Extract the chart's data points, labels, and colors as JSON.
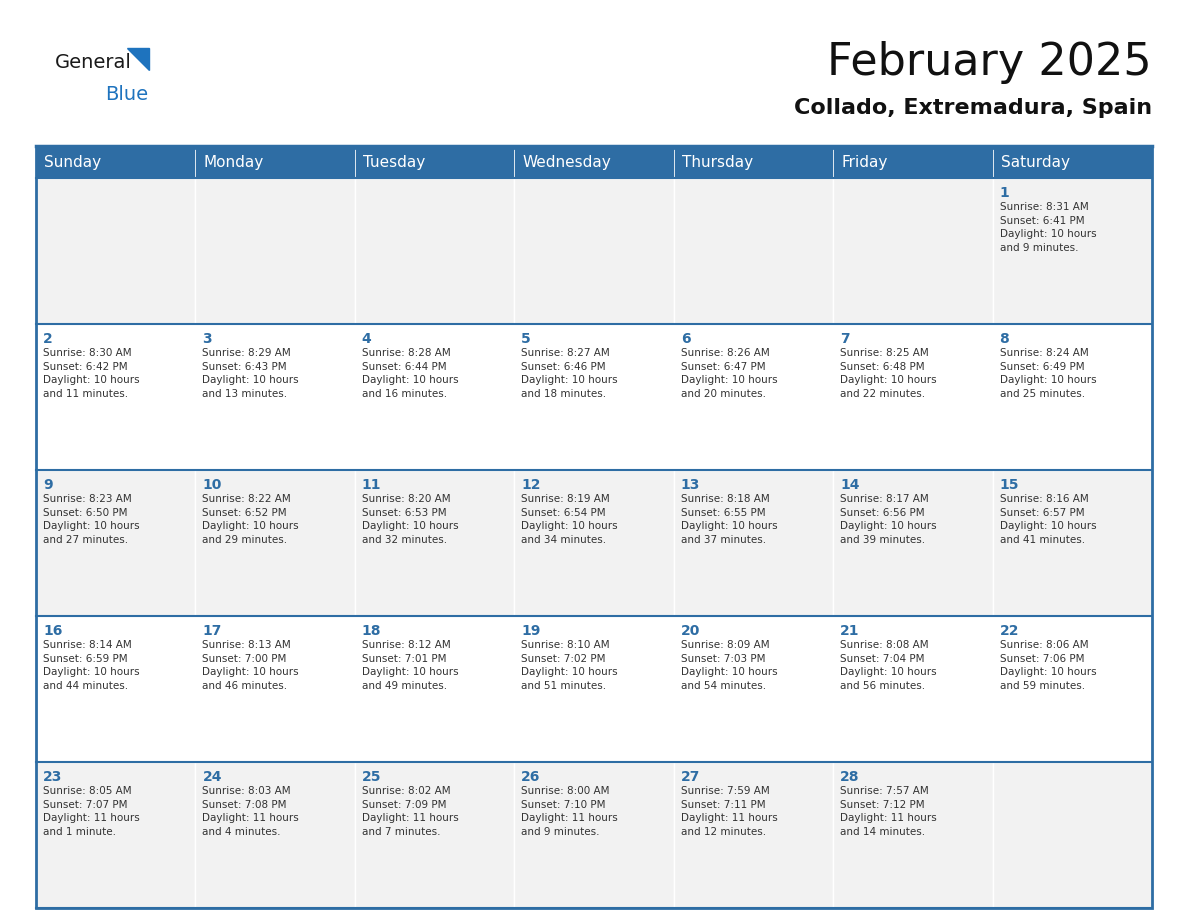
{
  "title": "February 2025",
  "subtitle": "Collado, Extremadura, Spain",
  "header_bg": "#2E6DA4",
  "header_text_color": "#FFFFFF",
  "cell_bg_even": "#F2F2F2",
  "cell_bg_odd": "#FFFFFF",
  "border_color": "#2E6DA4",
  "day_names": [
    "Sunday",
    "Monday",
    "Tuesday",
    "Wednesday",
    "Thursday",
    "Friday",
    "Saturday"
  ],
  "title_fontsize": 32,
  "subtitle_fontsize": 16,
  "header_fontsize": 11,
  "day_num_fontsize": 10,
  "info_fontsize": 7.5,
  "calendar": [
    [
      "",
      "",
      "",
      "",
      "",
      "",
      "1\nSunrise: 8:31 AM\nSunset: 6:41 PM\nDaylight: 10 hours\nand 9 minutes."
    ],
    [
      "2\nSunrise: 8:30 AM\nSunset: 6:42 PM\nDaylight: 10 hours\nand 11 minutes.",
      "3\nSunrise: 8:29 AM\nSunset: 6:43 PM\nDaylight: 10 hours\nand 13 minutes.",
      "4\nSunrise: 8:28 AM\nSunset: 6:44 PM\nDaylight: 10 hours\nand 16 minutes.",
      "5\nSunrise: 8:27 AM\nSunset: 6:46 PM\nDaylight: 10 hours\nand 18 minutes.",
      "6\nSunrise: 8:26 AM\nSunset: 6:47 PM\nDaylight: 10 hours\nand 20 minutes.",
      "7\nSunrise: 8:25 AM\nSunset: 6:48 PM\nDaylight: 10 hours\nand 22 minutes.",
      "8\nSunrise: 8:24 AM\nSunset: 6:49 PM\nDaylight: 10 hours\nand 25 minutes."
    ],
    [
      "9\nSunrise: 8:23 AM\nSunset: 6:50 PM\nDaylight: 10 hours\nand 27 minutes.",
      "10\nSunrise: 8:22 AM\nSunset: 6:52 PM\nDaylight: 10 hours\nand 29 minutes.",
      "11\nSunrise: 8:20 AM\nSunset: 6:53 PM\nDaylight: 10 hours\nand 32 minutes.",
      "12\nSunrise: 8:19 AM\nSunset: 6:54 PM\nDaylight: 10 hours\nand 34 minutes.",
      "13\nSunrise: 8:18 AM\nSunset: 6:55 PM\nDaylight: 10 hours\nand 37 minutes.",
      "14\nSunrise: 8:17 AM\nSunset: 6:56 PM\nDaylight: 10 hours\nand 39 minutes.",
      "15\nSunrise: 8:16 AM\nSunset: 6:57 PM\nDaylight: 10 hours\nand 41 minutes."
    ],
    [
      "16\nSunrise: 8:14 AM\nSunset: 6:59 PM\nDaylight: 10 hours\nand 44 minutes.",
      "17\nSunrise: 8:13 AM\nSunset: 7:00 PM\nDaylight: 10 hours\nand 46 minutes.",
      "18\nSunrise: 8:12 AM\nSunset: 7:01 PM\nDaylight: 10 hours\nand 49 minutes.",
      "19\nSunrise: 8:10 AM\nSunset: 7:02 PM\nDaylight: 10 hours\nand 51 minutes.",
      "20\nSunrise: 8:09 AM\nSunset: 7:03 PM\nDaylight: 10 hours\nand 54 minutes.",
      "21\nSunrise: 8:08 AM\nSunset: 7:04 PM\nDaylight: 10 hours\nand 56 minutes.",
      "22\nSunrise: 8:06 AM\nSunset: 7:06 PM\nDaylight: 10 hours\nand 59 minutes."
    ],
    [
      "23\nSunrise: 8:05 AM\nSunset: 7:07 PM\nDaylight: 11 hours\nand 1 minute.",
      "24\nSunrise: 8:03 AM\nSunset: 7:08 PM\nDaylight: 11 hours\nand 4 minutes.",
      "25\nSunrise: 8:02 AM\nSunset: 7:09 PM\nDaylight: 11 hours\nand 7 minutes.",
      "26\nSunrise: 8:00 AM\nSunset: 7:10 PM\nDaylight: 11 hours\nand 9 minutes.",
      "27\nSunrise: 7:59 AM\nSunset: 7:11 PM\nDaylight: 11 hours\nand 12 minutes.",
      "28\nSunrise: 7:57 AM\nSunset: 7:12 PM\nDaylight: 11 hours\nand 14 minutes.",
      ""
    ]
  ],
  "logo_color_general": "#1a1a1a",
  "logo_color_blue": "#1E73BE",
  "logo_triangle_color": "#1E73BE",
  "text_color_dark": "#333333"
}
